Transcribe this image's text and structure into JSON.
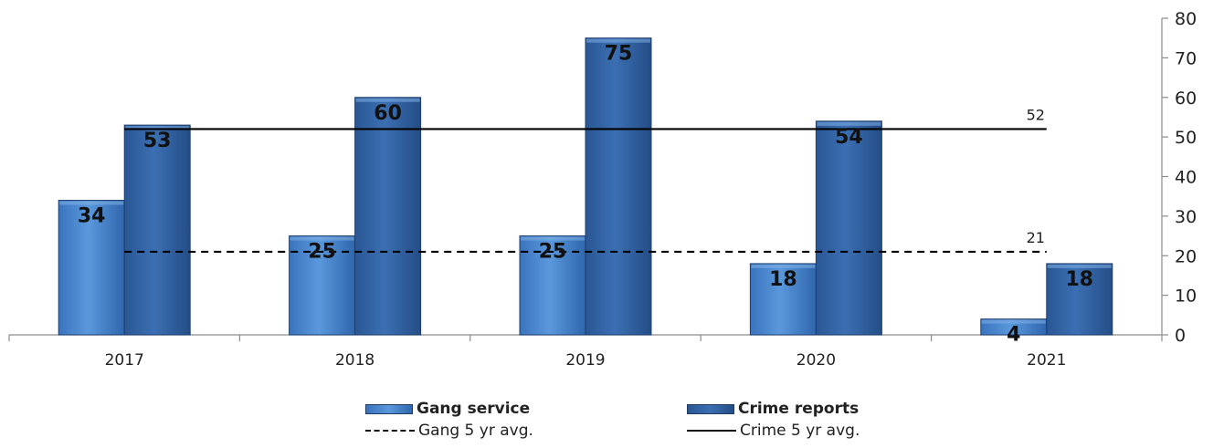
{
  "chart_data": {
    "type": "bar",
    "categories": [
      "2017",
      "2018",
      "2019",
      "2020",
      "2021"
    ],
    "series": [
      {
        "name": "Gang service",
        "values": [
          34,
          25,
          25,
          18,
          4
        ],
        "color": "#4a86cf"
      },
      {
        "name": "Crime reports",
        "values": [
          53,
          60,
          75,
          54,
          18
        ],
        "color": "#2e5f9e"
      }
    ],
    "reference_lines": [
      {
        "name": "Gang 5 yr avg.",
        "value": 21,
        "label": "21",
        "style": "dashed"
      },
      {
        "name": "Crime 5 yr avg.",
        "value": 52,
        "label": "52",
        "style": "solid"
      }
    ],
    "y_axis_position": "right",
    "ylim": [
      0,
      80
    ],
    "yticks": [
      "0",
      "10",
      "20",
      "30",
      "40",
      "50",
      "60",
      "70",
      "80"
    ],
    "grid": false,
    "legend_position": "bottom"
  },
  "legend": {
    "gang_service": "Gang service",
    "crime_reports": "Crime reports",
    "gang_avg": "Gang 5 yr avg.",
    "crime_avg": "Crime 5 yr avg."
  }
}
